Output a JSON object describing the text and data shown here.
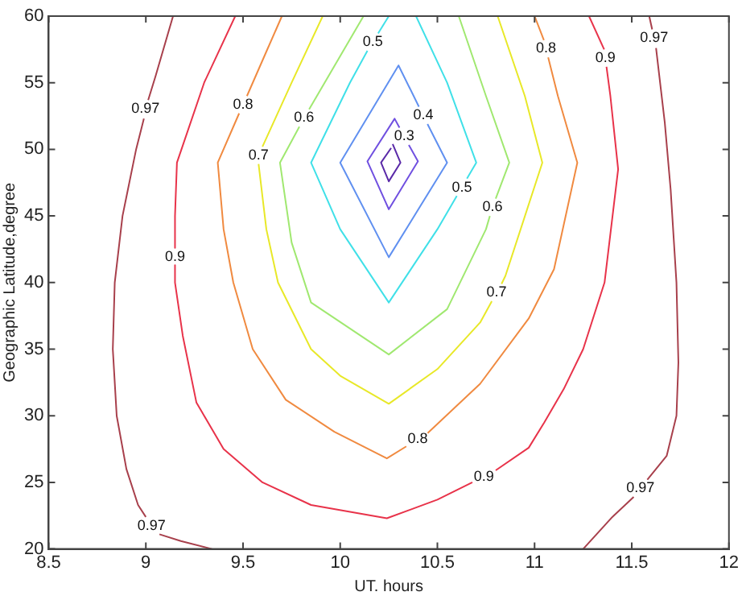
{
  "chart_data": {
    "type": "line",
    "xlabel": "UT. hours",
    "ylabel": "Geographic Latitude,degree",
    "xlim": [
      8.5,
      12
    ],
    "xticks": [
      8.5,
      9,
      9.5,
      10,
      10.5,
      11,
      11.5,
      12
    ],
    "ylim": [
      20,
      60
    ],
    "yticks": [
      20,
      25,
      30,
      35,
      40,
      45,
      50,
      55,
      60
    ],
    "grid": false,
    "legend": false,
    "marker": "none",
    "line_style": "solid",
    "series": [
      {
        "name": "0.97",
        "color": "#a8404c",
        "x": [
          9.14,
          9.05,
          9.012
        ],
        "values": [
          60,
          55.5,
          53.7
        ]
      },
      {
        "name": "0.97",
        "color": "#a8404c",
        "x": [
          8.99,
          8.95,
          8.88,
          8.84,
          8.83,
          8.85,
          8.9,
          8.96,
          9.0
        ],
        "values": [
          52.3,
          50,
          45,
          40,
          35,
          30,
          26,
          23.3,
          22.4
        ]
      },
      {
        "color": "#a8404c",
        "x": [
          9.07,
          9.18,
          9.34
        ],
        "values": [
          21.1,
          20.6,
          20
        ]
      },
      {
        "name": "0.97",
        "color": "#a8404c",
        "x": [
          11.59,
          11.605
        ],
        "values": [
          60,
          59.0
        ]
      },
      {
        "name": "0.97",
        "color": "#a8404c",
        "x": [
          11.625,
          11.67,
          11.7,
          11.73,
          11.74,
          11.73,
          11.68,
          11.58
        ],
        "values": [
          57.6,
          52,
          47,
          40,
          34,
          30,
          27,
          25.2
        ]
      },
      {
        "color": "#a8404c",
        "x": [
          11.51,
          11.4,
          11.25
        ],
        "values": [
          23.9,
          22.4,
          20
        ]
      },
      {
        "name": "0.9",
        "color": "#e8334a",
        "x": [
          9.46,
          9.3,
          9.16,
          9.15,
          9.15
        ],
        "values": [
          60,
          55,
          49,
          45,
          42.6
        ]
      },
      {
        "name": "0.9",
        "color": "#e8334a",
        "x": [
          9.15,
          9.15,
          9.19,
          9.26,
          9.4,
          9.6,
          9.85,
          10.24,
          10.5,
          10.68
        ],
        "values": [
          41.3,
          40,
          36,
          31,
          27.5,
          25,
          23.3,
          22.3,
          23.7,
          25.0
        ]
      },
      {
        "name": "0.9",
        "color": "#e8334a",
        "x": [
          10.8,
          10.97,
          11.05,
          11.15,
          11.25,
          11.36,
          11.43,
          11.39,
          11.37
        ],
        "values": [
          25.9,
          27.6,
          29.5,
          32,
          35,
          40,
          48.5,
          54,
          56.2
        ]
      },
      {
        "color": "#e8334a",
        "x": [
          11.358,
          11.28
        ],
        "values": [
          57.5,
          60
        ]
      },
      {
        "name": "0.8",
        "color": "#f08a40",
        "x": [
          9.7,
          9.52
        ],
        "values": [
          60,
          54
        ]
      },
      {
        "name": "0.8",
        "color": "#f08a40",
        "x": [
          9.48,
          9.37,
          9.4,
          9.45,
          9.55,
          9.72,
          9.97,
          10.24,
          10.34
        ],
        "values": [
          52.7,
          49,
          44,
          40,
          35,
          31.2,
          28.8,
          26.8,
          27.7
        ]
      },
      {
        "name": "0.8",
        "color": "#f08a40",
        "x": [
          10.45,
          10.72,
          10.97,
          11.1,
          11.22,
          11.12,
          11.07
        ],
        "values": [
          28.7,
          32.4,
          37.3,
          41,
          49,
          54,
          56.9
        ]
      },
      {
        "color": "#f08a40",
        "x": [
          11.048,
          11.0
        ],
        "values": [
          58.2,
          60
        ]
      },
      {
        "name": "0.7",
        "color": "#e8e828",
        "x": [
          9.91,
          9.75,
          9.6
        ],
        "values": [
          60,
          55,
          50.2
        ]
      },
      {
        "name": "0.7",
        "color": "#e8e828",
        "x": [
          9.58,
          9.62,
          9.68,
          9.85,
          10.0,
          10.25,
          10.5,
          10.72,
          10.78
        ],
        "values": [
          48.9,
          44,
          40,
          35,
          33,
          30.9,
          33.5,
          37,
          38.6
        ]
      },
      {
        "color": "#e8e828",
        "x": [
          10.83,
          10.85,
          11.04,
          10.95,
          10.81
        ],
        "values": [
          39.9,
          40.5,
          49,
          54,
          60
        ]
      },
      {
        "name": "0.6",
        "color": "#a0e870",
        "x": [
          10.12,
          9.84
        ],
        "values": [
          60,
          53
        ]
      },
      {
        "name": "0.6",
        "color": "#a0e870",
        "x": [
          9.79,
          9.69,
          9.75,
          9.85,
          10.25,
          10.55,
          10.75,
          10.77
        ],
        "values": [
          51.7,
          49,
          43,
          38.5,
          34.6,
          38,
          44,
          45.0
        ]
      },
      {
        "color": "#a0e870",
        "x": [
          10.8,
          10.87,
          10.75,
          10.61
        ],
        "values": [
          46.3,
          49,
          54,
          60
        ]
      },
      {
        "name": "0.5",
        "color": "#40e0e8",
        "x": [
          10.25,
          10.195
        ],
        "values": [
          60,
          58.7
        ]
      },
      {
        "name": "0.5",
        "color": "#40e0e8",
        "x": [
          10.14,
          10.05,
          9.85,
          10.0,
          10.25,
          10.5,
          10.6
        ],
        "values": [
          57.4,
          55,
          49,
          44,
          38.5,
          44,
          46.5
        ]
      },
      {
        "color": "#40e0e8",
        "x": [
          10.652,
          10.7,
          10.55,
          10.39
        ],
        "values": [
          47.8,
          49,
          55,
          60
        ]
      },
      {
        "name": "0.4",
        "color": "#6090f0",
        "x": [
          10.449,
          10.55,
          10.25,
          10.0,
          10.3,
          10.405
        ],
        "values": [
          51.9,
          49,
          41.9,
          49,
          56.3,
          53.2
        ]
      },
      {
        "name": "0.3",
        "color": "#7050e0",
        "x": [
          10.353,
          10.4,
          10.25,
          10.14,
          10.28,
          10.305
        ],
        "values": [
          50.33,
          49.1,
          45.5,
          49.1,
          52.3,
          51.63
        ]
      },
      {
        "color": "#5a2aa8",
        "x": [
          10.27,
          10.31,
          10.25,
          10.21,
          10.262
        ],
        "values": [
          50.4,
          49,
          47.6,
          49,
          50.1
        ]
      }
    ]
  }
}
